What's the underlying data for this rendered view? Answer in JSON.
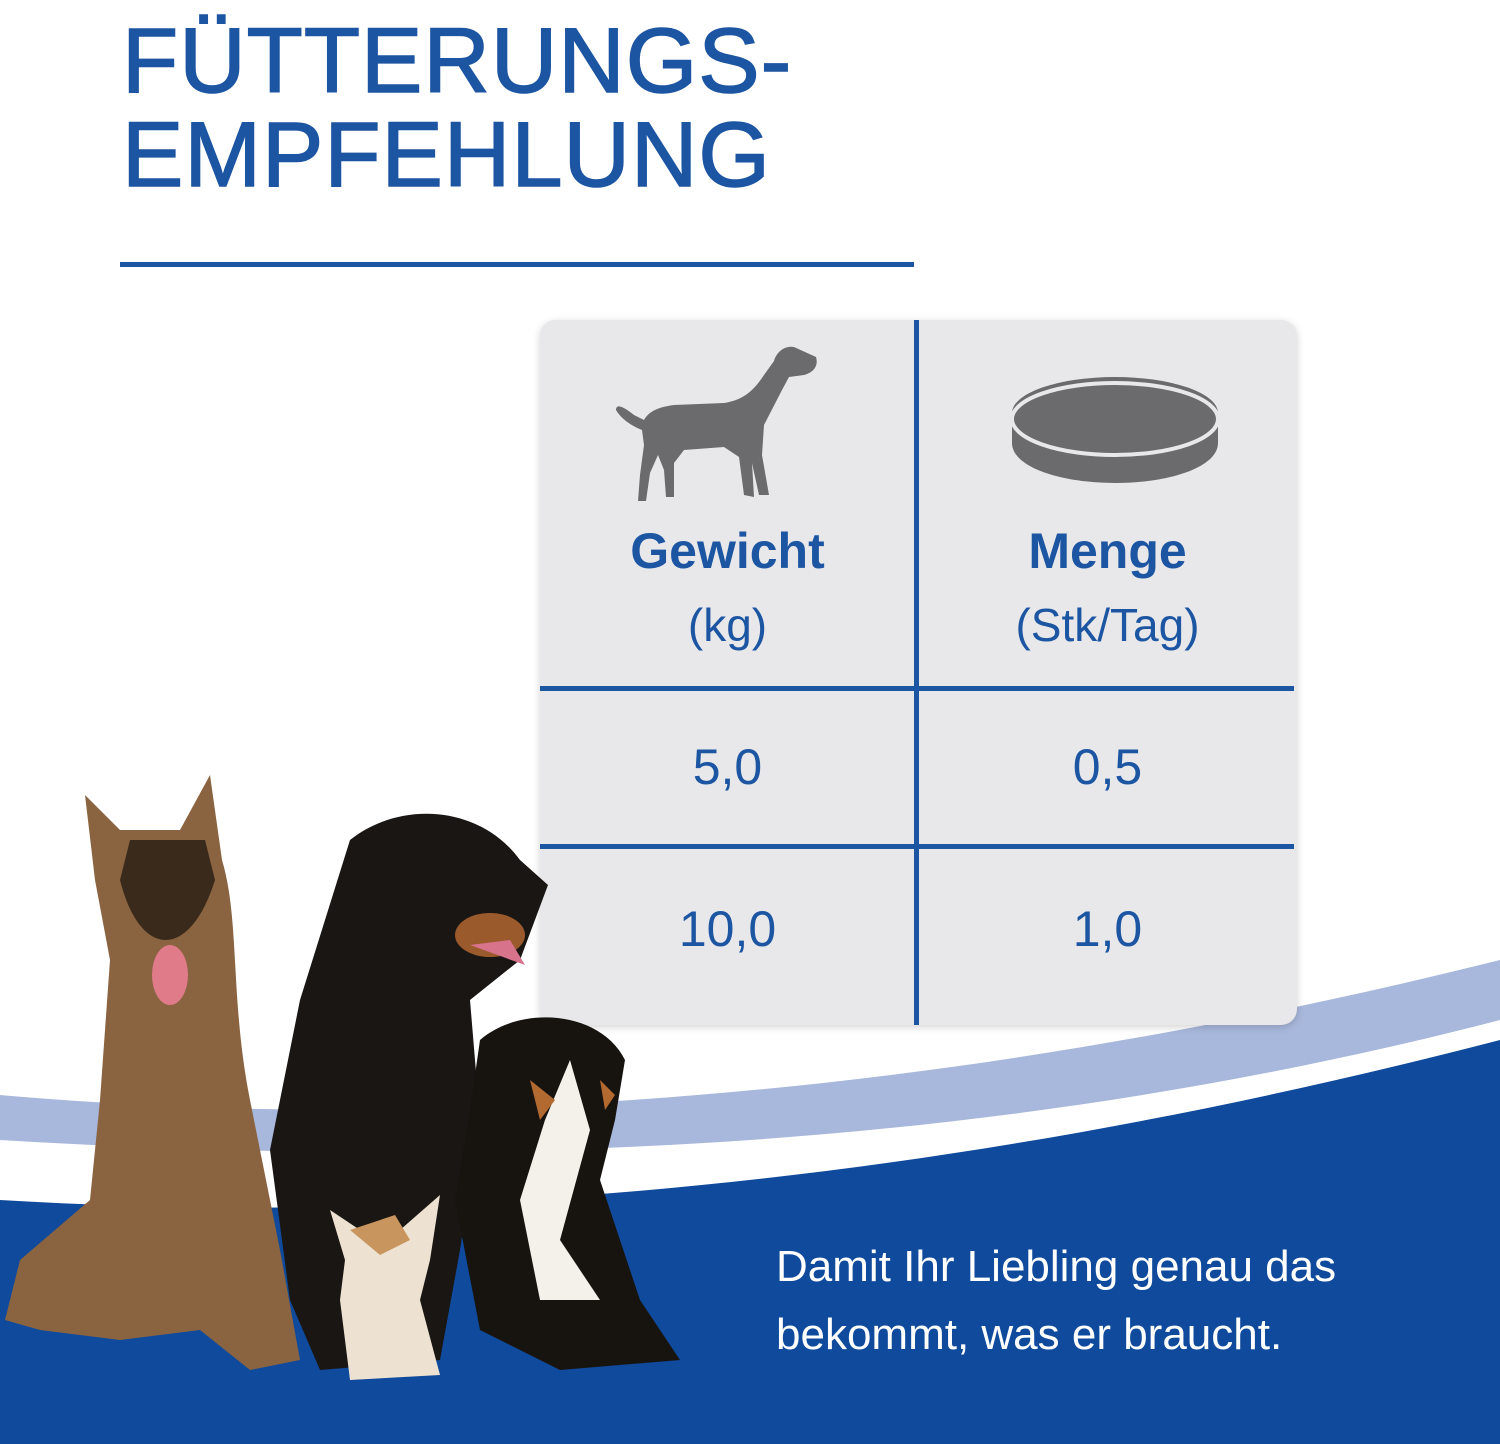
{
  "title": {
    "line1": "FÜTTERUNGS-",
    "line2": "EMPFEHLUNG"
  },
  "table": {
    "columns": [
      {
        "icon": "dog-icon",
        "header": "Gewicht",
        "unit": "(kg)"
      },
      {
        "icon": "tablet-icon",
        "header": "Menge",
        "unit": "(Stk/Tag)"
      }
    ],
    "rows": [
      [
        "5,0",
        "0,5"
      ],
      [
        "10,0",
        "1,0"
      ]
    ]
  },
  "tagline": {
    "line1": "Damit Ihr Liebling genau das",
    "line2": "bekommt, was er braucht."
  },
  "colors": {
    "brand_blue": "#1c55a2",
    "dark_blue": "#0f4a9c",
    "light_blue": "#a8b8dc",
    "card_gray": "#e8e8ea",
    "icon_gray": "#6b6b6d"
  }
}
